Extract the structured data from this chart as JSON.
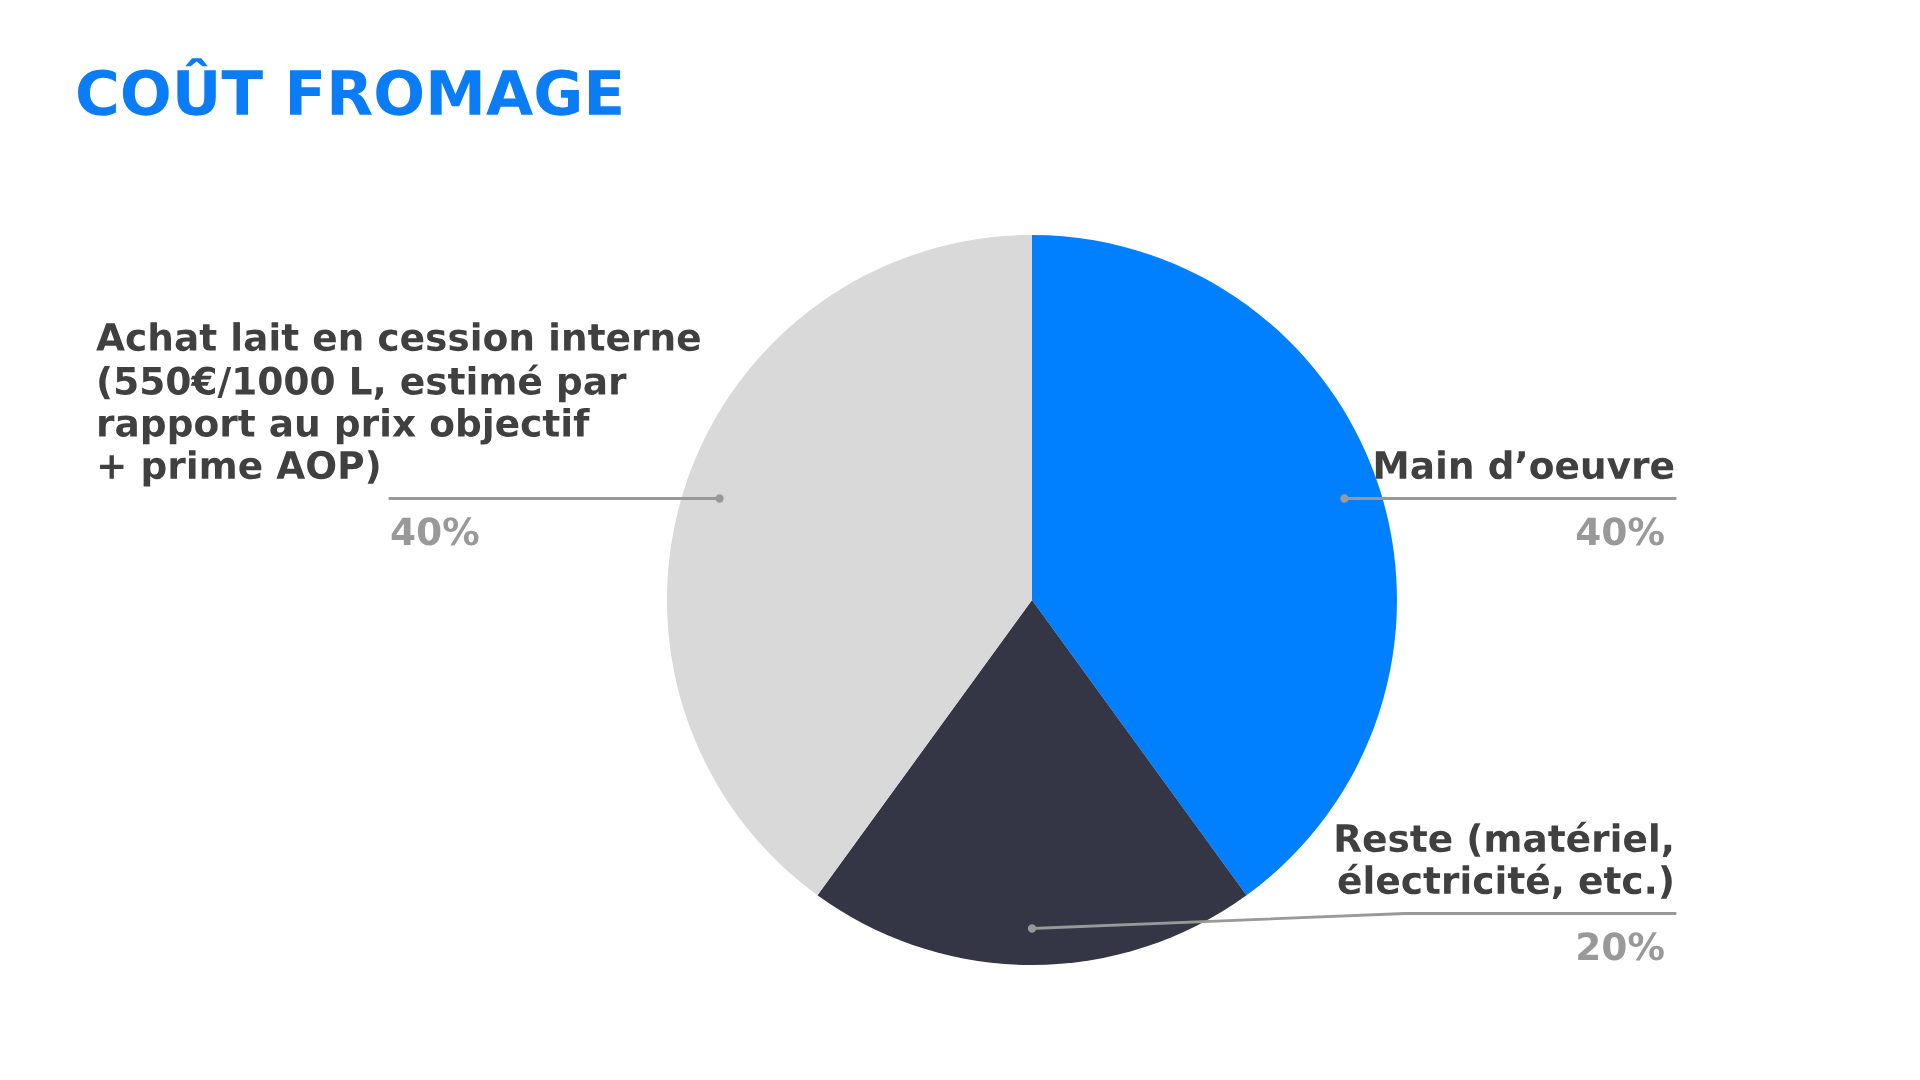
{
  "chart_data": {
    "type": "pie",
    "title": "COÛT FROMAGE",
    "categories": [
      "Main d’oeuvre",
      "Reste (matériel,\nélectricité, etc.)",
      "Achat lait en cession interne\n(550€/1000 L, estimé par\nrapport au prix objectif\n+ prime AOP)"
    ],
    "values": [
      40,
      20,
      40
    ],
    "colors": [
      "#0080ff",
      "#343646",
      "#d9d9d9"
    ],
    "value_labels": [
      "40%",
      "20%",
      "40%"
    ]
  }
}
